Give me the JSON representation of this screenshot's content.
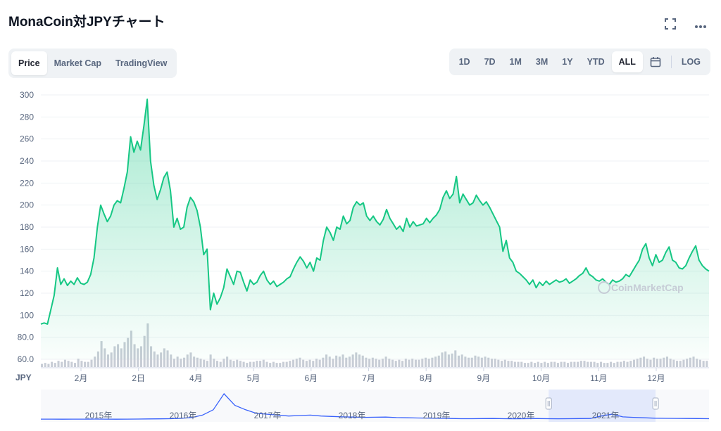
{
  "title": "MonaCoin対JPYチャート",
  "icons": {
    "fullscreen": "fullscreen-icon",
    "more": "more-icon"
  },
  "tabs": [
    {
      "label": "Price",
      "active": true
    },
    {
      "label": "Market Cap",
      "active": false
    },
    {
      "label": "TradingView",
      "active": false
    }
  ],
  "ranges": [
    {
      "label": "1D",
      "active": false
    },
    {
      "label": "7D",
      "active": false
    },
    {
      "label": "1M",
      "active": false
    },
    {
      "label": "3M",
      "active": false
    },
    {
      "label": "1Y",
      "active": false
    },
    {
      "label": "YTD",
      "active": false
    },
    {
      "label": "ALL",
      "active": true
    }
  ],
  "log_label": "LOG",
  "colors": {
    "line": "#16c784",
    "nav": "#3861fb",
    "volume": "#c8cdd6",
    "grid": "#eff2f5"
  },
  "chart_data": {
    "type": "area",
    "title": "",
    "currency_label": "JPY",
    "y_ticks": [
      "300",
      "280",
      "260",
      "240",
      "220",
      "200",
      "180",
      "160",
      "140",
      "120",
      "100",
      "80.0",
      "60.0"
    ],
    "ylim": [
      60,
      300
    ],
    "x_ticks": [
      "2月",
      "2日",
      "4月",
      "5月",
      "6月",
      "7月",
      "8月",
      "9月",
      "10月",
      "11月",
      "12月"
    ],
    "grid": true,
    "watermark": "CoinMarketCap",
    "series": [
      {
        "values": [
          92,
          93,
          92,
          105,
          118,
          143,
          128,
          133,
          127,
          131,
          128,
          134,
          129,
          128,
          130,
          137,
          152,
          180,
          200,
          192,
          185,
          190,
          200,
          204,
          202,
          215,
          230,
          262,
          248,
          258,
          250,
          272,
          296,
          240,
          218,
          205,
          214,
          225,
          230,
          213,
          180,
          188,
          178,
          180,
          198,
          207,
          203,
          195,
          180,
          155,
          160,
          105,
          120,
          110,
          116,
          125,
          142,
          135,
          128,
          140,
          139,
          130,
          122,
          132,
          128,
          130,
          136,
          140,
          132,
          128,
          131,
          126,
          128,
          130,
          133,
          135,
          142,
          148,
          153,
          149,
          143,
          148,
          140,
          152,
          150,
          168,
          180,
          175,
          168,
          180,
          178,
          190,
          183,
          186,
          198,
          203,
          200,
          202,
          190,
          186,
          190,
          185,
          182,
          187,
          196,
          188,
          183,
          178,
          181,
          176,
          188,
          180,
          185,
          181,
          182,
          183,
          188,
          184,
          188,
          191,
          196,
          207,
          213,
          206,
          210,
          226,
          202,
          210,
          205,
          200,
          202,
          209,
          204,
          200,
          203,
          198,
          192,
          186,
          180,
          158,
          168,
          152,
          148,
          140,
          138,
          135,
          132,
          128,
          132,
          125,
          130,
          127,
          131,
          128,
          130,
          132,
          130,
          131,
          133,
          129,
          131,
          133,
          136,
          138,
          143,
          137,
          135,
          132,
          131,
          133,
          130,
          128,
          132,
          130,
          131,
          133,
          137,
          135,
          140,
          145,
          150,
          160,
          165,
          152,
          145,
          155,
          148,
          150,
          157,
          162,
          150,
          148,
          143,
          142,
          145,
          152,
          158,
          163,
          150,
          145,
          142,
          140
        ]
      }
    ],
    "volume": [
      3,
      4,
      3,
      5,
      4,
      6,
      5,
      7,
      6,
      5,
      4,
      8,
      6,
      5,
      5,
      7,
      10,
      15,
      25,
      18,
      12,
      14,
      20,
      22,
      18,
      24,
      28,
      35,
      22,
      18,
      20,
      30,
      42,
      20,
      15,
      12,
      14,
      18,
      16,
      12,
      8,
      10,
      8,
      9,
      12,
      14,
      10,
      9,
      8,
      7,
      6,
      12,
      8,
      6,
      5,
      8,
      10,
      7,
      6,
      7,
      6,
      5,
      4,
      5,
      5,
      6,
      6,
      7,
      5,
      4,
      5,
      4,
      4,
      5,
      5,
      6,
      7,
      8,
      9,
      7,
      6,
      7,
      6,
      8,
      7,
      9,
      12,
      10,
      8,
      11,
      10,
      12,
      9,
      10,
      12,
      14,
      12,
      11,
      9,
      8,
      9,
      8,
      7,
      8,
      10,
      8,
      7,
      6,
      7,
      6,
      8,
      7,
      8,
      7,
      7,
      8,
      9,
      8,
      9,
      10,
      11,
      14,
      15,
      12,
      13,
      16,
      11,
      12,
      10,
      9,
      9,
      11,
      10,
      9,
      10,
      9,
      8,
      8,
      7,
      6,
      7,
      6,
      6,
      5,
      5,
      5,
      4,
      4,
      5,
      4,
      5,
      4,
      5,
      4,
      5,
      5,
      4,
      5,
      5,
      4,
      5,
      5,
      5,
      6,
      6,
      5,
      5,
      5,
      4,
      5,
      4,
      4,
      5,
      4,
      5,
      5,
      6,
      5,
      6,
      7,
      8,
      9,
      10,
      8,
      7,
      9,
      8,
      8,
      9,
      10,
      8,
      7,
      6,
      6,
      7,
      8,
      9,
      10,
      8,
      7,
      6,
      6
    ],
    "navigator": {
      "labels": [
        "2015年",
        "2016年",
        "2017年",
        "2018年",
        "2019年",
        "2020年",
        "2021年"
      ],
      "values": [
        95,
        95,
        94,
        95,
        95,
        96,
        95,
        94,
        95,
        96,
        97,
        98,
        100,
        104,
        112,
        140,
        200,
        380,
        250,
        200,
        160,
        150,
        140,
        130,
        135,
        140,
        130,
        125,
        120,
        118,
        115,
        116,
        118,
        112,
        110,
        108,
        106,
        104,
        102,
        100,
        100,
        101,
        102,
        100,
        99,
        100,
        101,
        100,
        99,
        100,
        101,
        102,
        130,
        150,
        120,
        115,
        110,
        105,
        104,
        103,
        102,
        101,
        100
      ],
      "selection": [
        0.76,
        0.92
      ]
    }
  }
}
